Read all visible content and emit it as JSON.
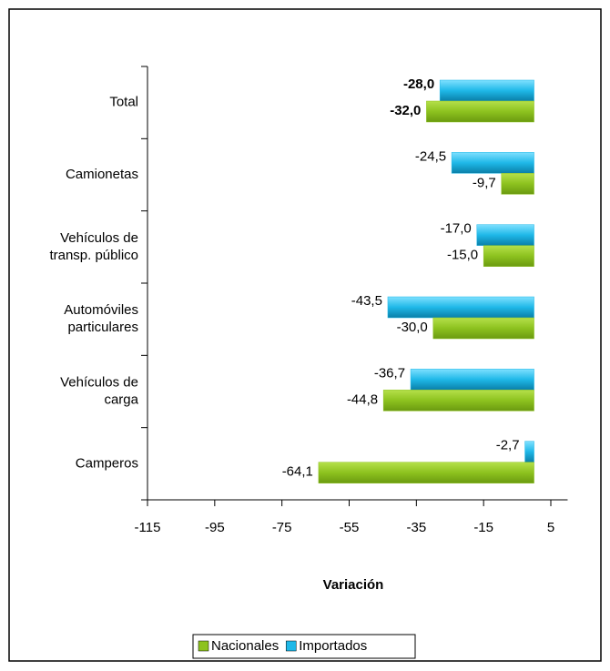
{
  "chart_data": {
    "type": "barh",
    "xlabel": "Variación",
    "categories": [
      "Total",
      "Camionetas",
      "Vehículos de\ntransp. público",
      "Automóviles\nparticulares",
      "Vehículos de\ncarga",
      "Camperos"
    ],
    "series": [
      {
        "name": "Importados",
        "color": "#1fb8e8",
        "values": [
          -28.0,
          -24.5,
          -17.0,
          -43.5,
          -36.7,
          -2.7
        ],
        "value_labels": [
          "-28,0",
          "-24,5",
          "-17,0",
          "-43,5",
          "-36,7",
          "-2,7"
        ]
      },
      {
        "name": "Nacionales",
        "color": "#8dc21f",
        "values": [
          -32.0,
          -9.7,
          -15.0,
          -30.0,
          -44.8,
          -64.1
        ],
        "value_labels": [
          "-32,0",
          "-9,7",
          "-15,0",
          "-30,0",
          "-44,8",
          "-64,1"
        ]
      }
    ],
    "legend_order": [
      "Nacionales",
      "Importados"
    ],
    "xlim": [
      -115,
      10
    ],
    "xticks": [
      -115,
      -95,
      -75,
      -55,
      -35,
      -15,
      5
    ],
    "grid": false
  }
}
